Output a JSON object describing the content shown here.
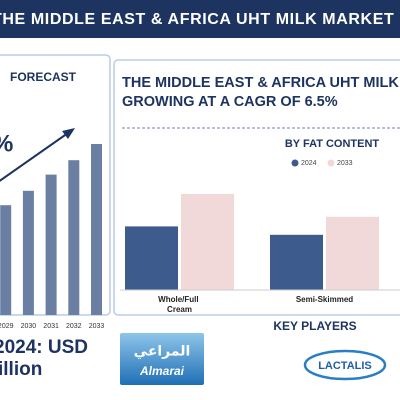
{
  "header": {
    "title": "THE MIDDLE EAST & AFRICA UHT MILK MARKET"
  },
  "left_panel": {
    "heading": "FORECAST",
    "cagr": "%",
    "market_size_line1": "2024: USD",
    "market_size_line2": "illion"
  },
  "right_panel": {
    "title_line1": "THE MIDDLE EAST & AFRICA UHT MILK",
    "title_line2": "GROWING AT A CAGR OF 6.5%"
  },
  "key_players": {
    "heading": "KEY PLAYERS",
    "logos": [
      {
        "arabic": "المراعي",
        "name": "Almarai"
      },
      {
        "name": "LACTALIS"
      }
    ]
  },
  "chart_data": [
    {
      "type": "bar",
      "categories": [
        "2029",
        "2030",
        "2031",
        "2032",
        "2033"
      ],
      "values": [
        61,
        69,
        78,
        86,
        95
      ],
      "color": "#6b7fa3",
      "ylim": [
        0,
        100
      ]
    },
    {
      "type": "bar",
      "title": "BY FAT CONTENT",
      "categories": [
        "Whole/Full Cream",
        "Semi-Skimmed"
      ],
      "series": [
        {
          "name": "2024",
          "color": "#3d5b8c",
          "values": [
            53,
            46
          ]
        },
        {
          "name": "2033",
          "color": "#f1d9d9",
          "values": [
            80,
            61
          ]
        }
      ],
      "ylim": [
        0,
        100
      ]
    }
  ]
}
